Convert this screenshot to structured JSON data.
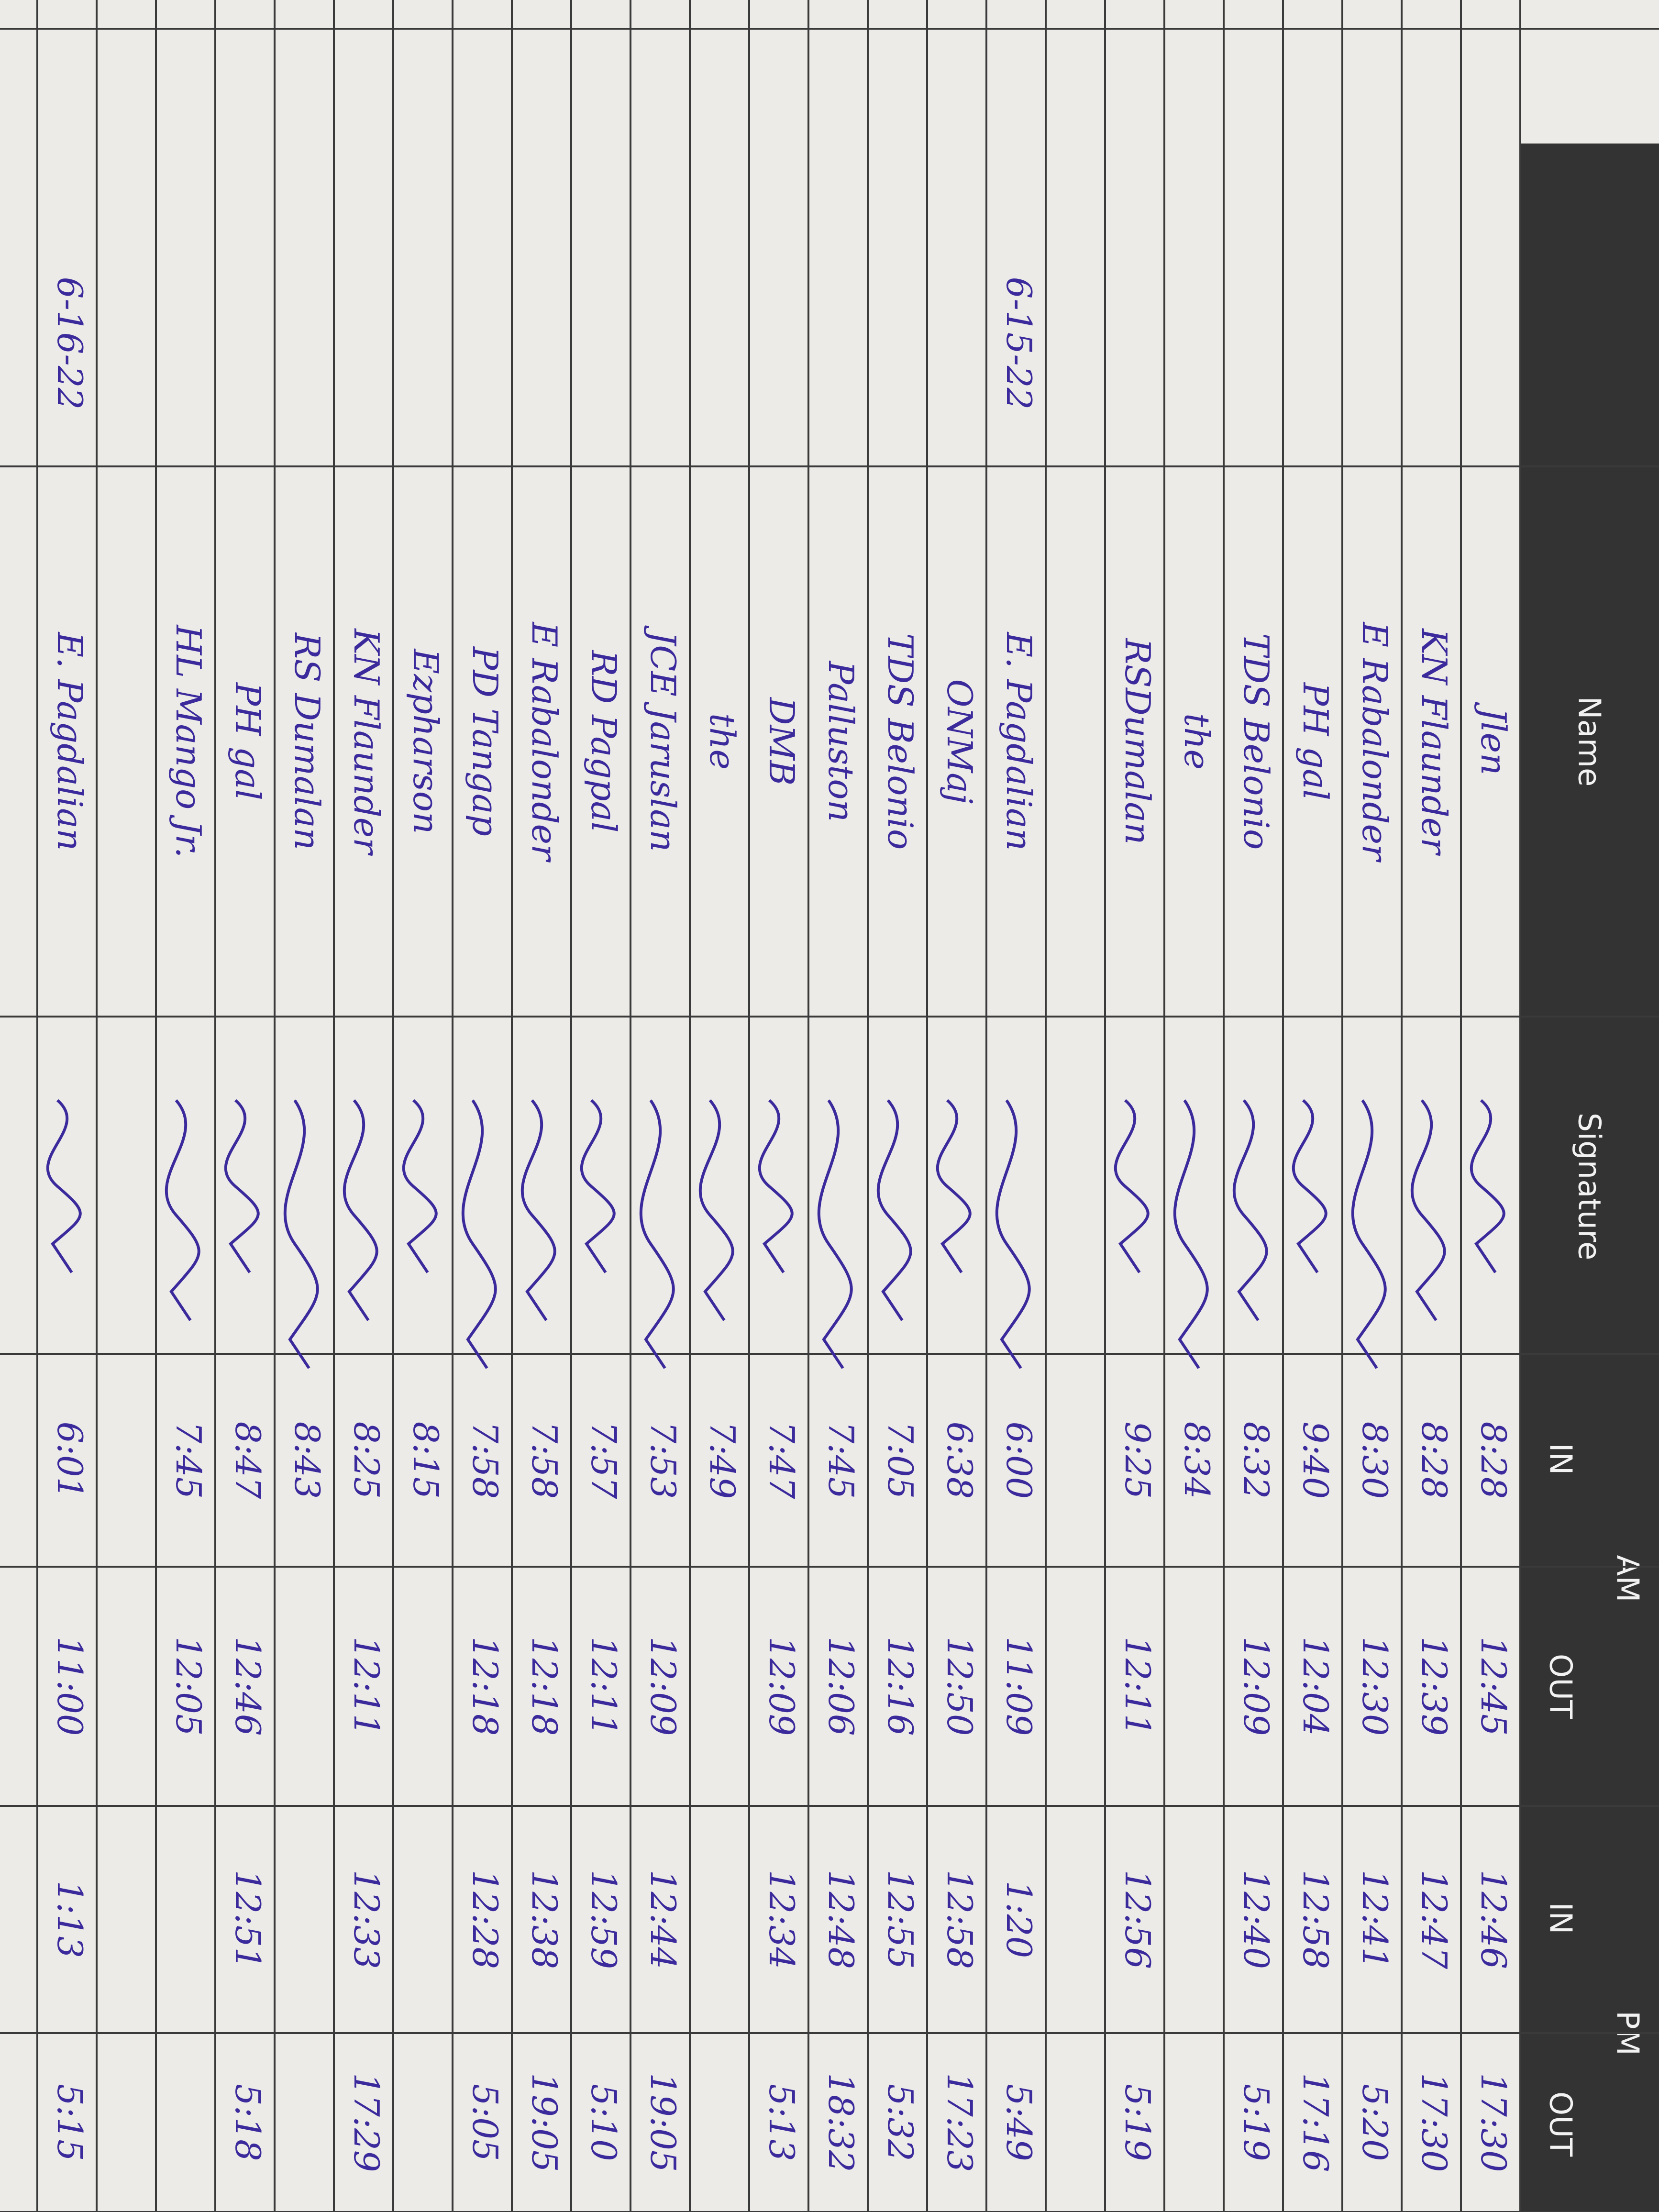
{
  "header": {
    "name": "Name",
    "signature": "Signature",
    "am": "AM",
    "pm": "PM",
    "in": "IN",
    "out": "OUT"
  },
  "rows": [
    [
      null,
      "Jlen",
      "8:28",
      "12:45",
      "12:46",
      "17:30"
    ],
    [
      null,
      "KN Flaunder",
      "8:28",
      "12:39",
      "12:47",
      "17:30"
    ],
    [
      null,
      "E Rabalonder",
      "8:30",
      "12:30",
      "12:41",
      "5:20"
    ],
    [
      null,
      "PH gal",
      "9:40",
      "12:04",
      "12:58",
      "17:16"
    ],
    [
      null,
      "TDS Belonio",
      "8:32",
      "12:09",
      "12:40",
      "5:19"
    ],
    [
      null,
      "the",
      "8:34",
      null,
      null,
      null
    ],
    [
      null,
      "RSDumalan",
      "9:25",
      "12:11",
      "12:56",
      "5:19"
    ],
    [
      null,
      null,
      null,
      null,
      null,
      null
    ],
    [
      "6-15-22",
      "E. Pagdalian",
      "6:00",
      "11:09",
      "1:20",
      "5:49"
    ],
    [
      null,
      "ONMaj",
      "6:38",
      "12:50",
      "12:58",
      "17:23"
    ],
    [
      null,
      "TDS Belonio",
      "7:05",
      "12:16",
      "12:55",
      "5:32"
    ],
    [
      null,
      "Palluston",
      "7:45",
      "12:06",
      "12:48",
      "18:32"
    ],
    [
      null,
      "DMB",
      "7:47",
      "12:09",
      "12:34",
      "5:13"
    ],
    [
      null,
      "the",
      "7:49",
      null,
      null,
      null
    ],
    [
      null,
      "JCE Jaruslan",
      "7:53",
      "12:09",
      "12:44",
      "19:05"
    ],
    [
      null,
      "RD Pagpal",
      "7:57",
      "12:11",
      "12:59",
      "5:10"
    ],
    [
      null,
      "E Rabalonder",
      "7:58",
      "12:18",
      "12:38",
      "19:05"
    ],
    [
      null,
      "PD Tangap",
      "7:58",
      "12:18",
      "12:28",
      "5:05"
    ],
    [
      null,
      "Ezpharson",
      "8:15",
      null,
      null,
      null
    ],
    [
      null,
      "KN Flaunder",
      "8:25",
      "12:11",
      "12:33",
      "17:29"
    ],
    [
      null,
      "RS Dumalan",
      "8:43",
      null,
      null,
      null
    ],
    [
      null,
      "PH gal",
      "8:47",
      "12:46",
      "12:51",
      "5:18"
    ],
    [
      null,
      "HL Mango Jr.",
      "7:45",
      "12:05",
      null,
      null
    ],
    [
      null,
      null,
      null,
      null,
      null,
      null
    ],
    [
      "6-16-22",
      "E. Pagdalian",
      "6:01",
      "11:00",
      "1:13",
      "5:15"
    ]
  ]
}
